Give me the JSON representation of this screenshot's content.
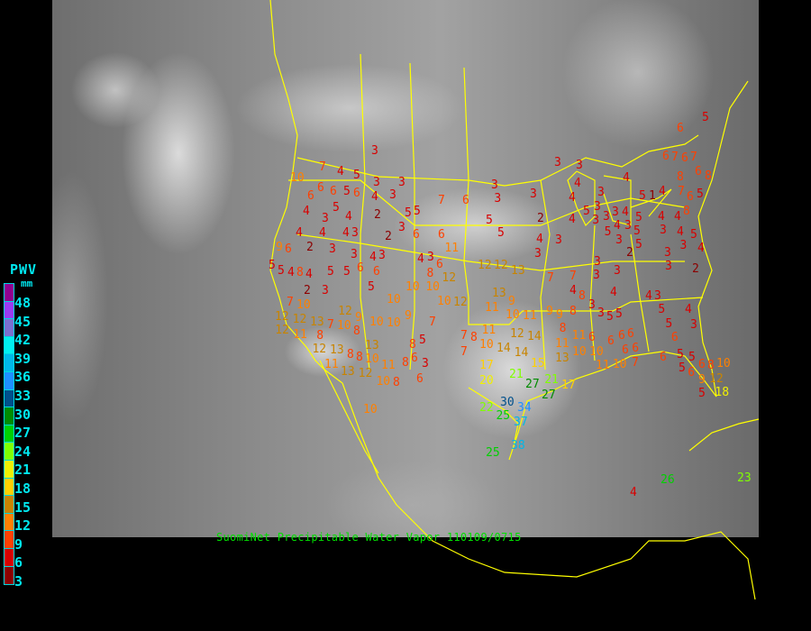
{
  "title": "SuomiNet Precipitable Water Vapor 110109/0715",
  "legend": {
    "title": "PWV",
    "unit": "mm",
    "labels": [
      "48",
      "45",
      "42",
      "39",
      "36",
      "33",
      "30",
      "27",
      "24",
      "21",
      "18",
      "15",
      "12",
      "9",
      "6",
      "3"
    ],
    "colors": [
      "#900090",
      "#9a3cf0",
      "#7a70d0",
      "#00f0f0",
      "#00b8e8",
      "#1e90ff",
      "#00508c",
      "#008c00",
      "#00d000",
      "#80ff00",
      "#f0f000",
      "#ffd000",
      "#c88400",
      "#ff8000",
      "#ff4000",
      "#d80000",
      "#8c0000"
    ]
  },
  "stations": [
    "3",
    "7",
    "4",
    "5",
    "3",
    "3",
    "10",
    "6",
    "6",
    "5",
    "6",
    "6",
    "4",
    "3",
    "4",
    "5",
    "4",
    "2",
    "5",
    "5",
    "3",
    "4",
    "4",
    "3",
    "2",
    "3",
    "6",
    "6",
    "11",
    "4",
    "9",
    "6",
    "2",
    "3",
    "3",
    "4",
    "3",
    "4",
    "3",
    "6",
    "8",
    "12",
    "10",
    "10",
    "12",
    "10",
    "5",
    "10",
    "6",
    "6",
    "5",
    "5",
    "4",
    "8",
    "4",
    "5",
    "5",
    "2",
    "3",
    "7",
    "10",
    "12",
    "12",
    "12",
    "11",
    "13",
    "8",
    "7",
    "10",
    "8",
    "12",
    "9",
    "10",
    "10",
    "9",
    "7",
    "12",
    "13",
    "11",
    "8",
    "8",
    "10",
    "11",
    "13",
    "12",
    "10",
    "8",
    "5",
    "6",
    "3",
    "8",
    "6",
    "8",
    "10",
    "13",
    "7",
    "8",
    "7",
    "10",
    "11",
    "9",
    "10",
    "12",
    "14",
    "14",
    "14",
    "11",
    "17",
    "20",
    "21",
    "27",
    "30",
    "22",
    "25",
    "34",
    "37",
    "38",
    "25",
    "27",
    "21",
    "17",
    "15",
    "13",
    "11",
    "10",
    "11",
    "11",
    "13",
    "12",
    "12",
    "13",
    "3",
    "3",
    "4",
    "4",
    "3",
    "3",
    "4",
    "3",
    "3",
    "3",
    "2",
    "4",
    "4",
    "3",
    "3",
    "5",
    "5",
    "6",
    "7",
    "5",
    "3",
    "3",
    "3",
    "4",
    "4",
    "5",
    "3",
    "3",
    "5",
    "5",
    "5",
    "1",
    "4",
    "4",
    "4",
    "3",
    "4",
    "3",
    "5",
    "4",
    "5",
    "2",
    "3",
    "3",
    "2",
    "3",
    "3",
    "3",
    "7",
    "4",
    "4",
    "3",
    "3",
    "8",
    "8",
    "9",
    "9",
    "8",
    "4",
    "3",
    "4",
    "5",
    "5",
    "3",
    "5",
    "5",
    "6",
    "6",
    "6",
    "6",
    "6",
    "6",
    "6",
    "10",
    "11",
    "10",
    "7",
    "6",
    "5",
    "5",
    "5",
    "6",
    "6",
    "8",
    "9",
    "12",
    "10",
    "5",
    "18",
    "6",
    "6",
    "7",
    "6",
    "7",
    "6",
    "8",
    "8",
    "7",
    "6",
    "5",
    "8",
    "5",
    "7",
    "4",
    "26",
    "23",
    "26"
  ]
}
